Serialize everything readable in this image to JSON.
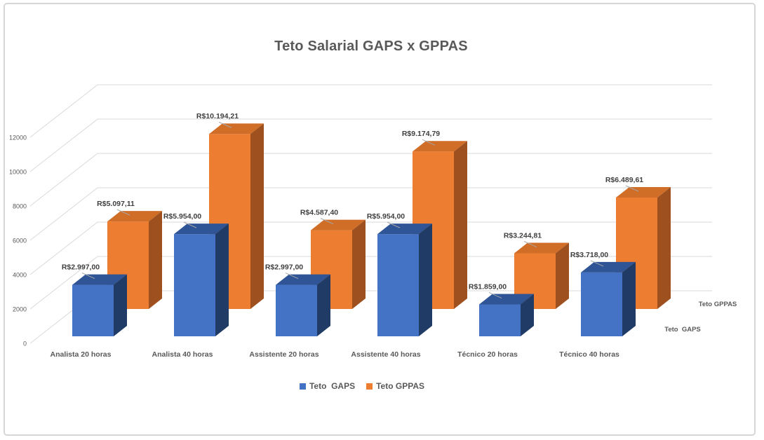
{
  "chart_data": {
    "type": "bar",
    "style": "3d-column",
    "title": "Teto Salarial GAPS x GPPAS",
    "categories": [
      "Analista 20 horas",
      "Analista 40 horas",
      "Assistente 20 horas",
      "Assistente 40 horas",
      "Técnico 20 horas",
      "Técnico 40 horas"
    ],
    "series": [
      {
        "name": "Teto  GAPS",
        "color": "#4472C4",
        "face_colors": {
          "front": "#4472C4",
          "top": "#2F5597",
          "side": "#203C66"
        },
        "values": [
          2997.0,
          5954.0,
          2997.0,
          5954.0,
          1859.0,
          3718.0
        ],
        "labels": [
          "R$2.997,00",
          "R$5.954,00",
          "R$2.997,00",
          "R$5.954,00",
          "R$1.859,00",
          "R$3.718,00"
        ]
      },
      {
        "name": "Teto GPPAS",
        "color": "#ED7D31",
        "face_colors": {
          "front": "#ED7D31",
          "top": "#D06E28",
          "side": "#9E501E"
        },
        "values": [
          5097.11,
          10194.21,
          4587.4,
          9174.79,
          3244.81,
          6489.61
        ],
        "labels": [
          "R$5.097,11",
          "R$10.194,21",
          "R$4.587,40",
          "R$9.174,79",
          "R$3.244,81",
          "R$6.489,61"
        ]
      }
    ],
    "value_axis": {
      "min": 0,
      "max": 12000,
      "ticks": [
        0,
        2000,
        4000,
        6000,
        8000,
        10000,
        12000
      ]
    },
    "depth_axis_labels": [
      "Teto GPPAS",
      "Teto  GAPS"
    ],
    "legend": {
      "position": "bottom"
    },
    "gridlines": true,
    "colors": {
      "gridline": "#D9D9D9",
      "leader_line": "#A6A6A6",
      "axis_text": "#595959",
      "data_label_text": "#3F3F3F",
      "title_text": "#595959",
      "frame_border": "#D6D6D6",
      "background": "#FFFFFF"
    }
  }
}
